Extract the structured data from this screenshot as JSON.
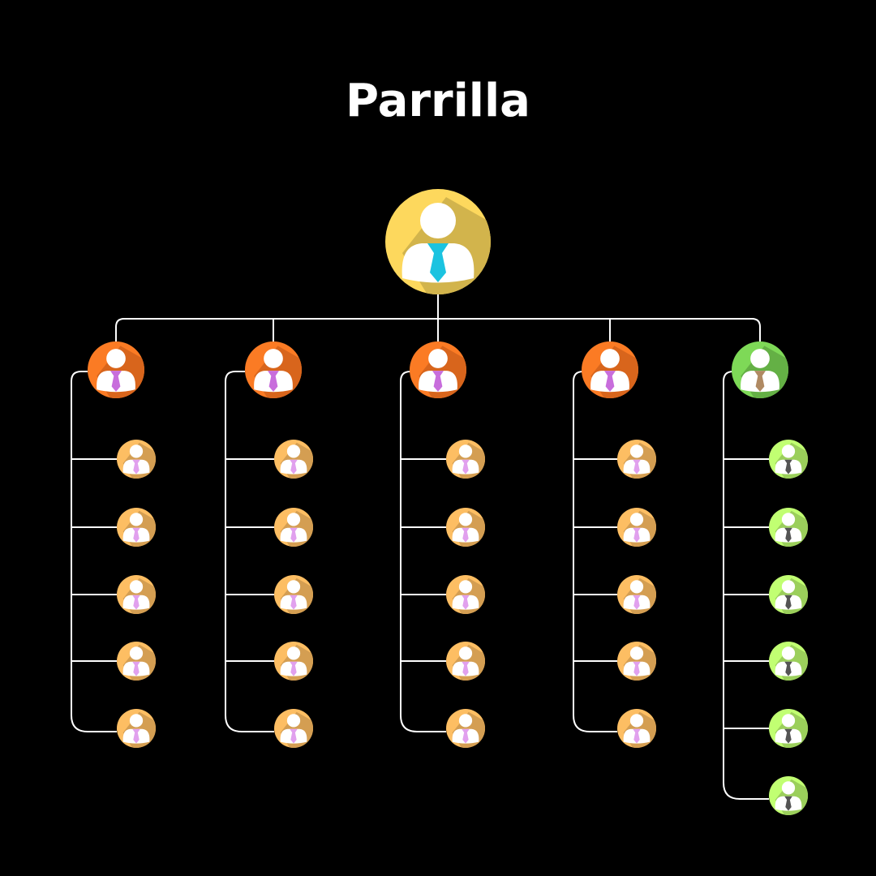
{
  "title": "Parrilla",
  "root": {
    "color": "#FDD85D",
    "shadow": "#D2B44C",
    "tie": "#1BC3E0"
  },
  "groups": [
    {
      "color": "#FB7B24",
      "shadow": "#D8651C",
      "tie": "#C86DDC",
      "child": {
        "color": "#FDBE63",
        "shadow": "#D49E52",
        "tie": "#E1A0EE"
      },
      "children": 5
    },
    {
      "color": "#FB7B24",
      "shadow": "#D8651C",
      "tie": "#C86DDC",
      "child": {
        "color": "#FDBE63",
        "shadow": "#D49E52",
        "tie": "#E1A0EE"
      },
      "children": 5
    },
    {
      "color": "#FB7B24",
      "shadow": "#D8651C",
      "tie": "#C86DDC",
      "child": {
        "color": "#FDBE63",
        "shadow": "#D49E52",
        "tie": "#E1A0EE"
      },
      "children": 5
    },
    {
      "color": "#FB7B24",
      "shadow": "#D8651C",
      "tie": "#C86DDC",
      "child": {
        "color": "#FDBE63",
        "shadow": "#D49E52",
        "tie": "#E1A0EE"
      },
      "children": 5
    },
    {
      "color": "#7ED957",
      "shadow": "#64B045",
      "tie": "#B08A63",
      "child": {
        "color": "#C1FF72",
        "shadow": "#9BCF5B",
        "tie": "#545454"
      },
      "children": 6
    }
  ],
  "line_color": "#FFFFFF"
}
